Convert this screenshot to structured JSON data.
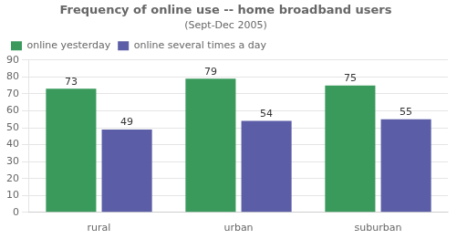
{
  "chart_data": {
    "type": "bar",
    "title": "Frequency of online use -- home broadband users",
    "subtitle": "(Sept-Dec 2005)",
    "categories": [
      "rural",
      "urban",
      "suburban"
    ],
    "series": [
      {
        "name": "online yesterday",
        "values": [
          73,
          79,
          75
        ],
        "color": "#3a9a5c"
      },
      {
        "name": "online several times a day",
        "values": [
          49,
          54,
          55
        ],
        "color": "#5b5ea6"
      }
    ],
    "ylim": [
      0,
      90
    ],
    "yticks": [
      0,
      10,
      20,
      30,
      40,
      50,
      60,
      70,
      80,
      90
    ],
    "grid": true,
    "legend": "upper left",
    "data_labels": true
  }
}
